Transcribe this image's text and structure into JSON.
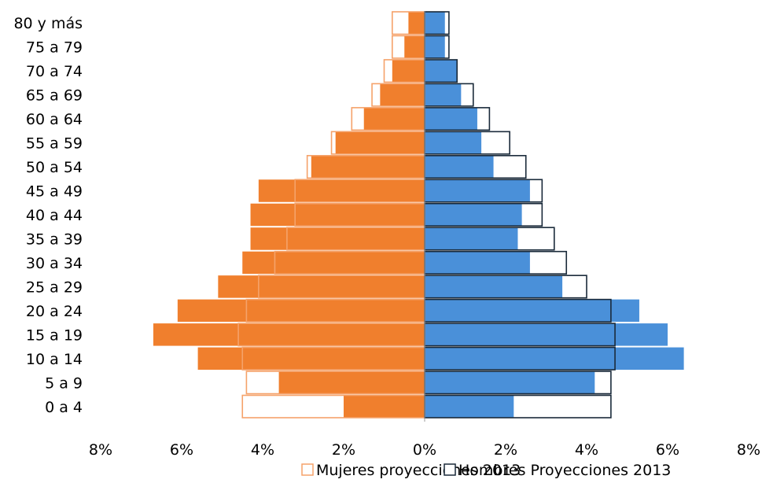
{
  "chart_data": {
    "type": "bar",
    "orientation": "horizontal",
    "subtype": "population-pyramid",
    "categories": [
      "0 a 4",
      "5 a 9",
      "10 a 14",
      "15 a 19",
      "20 a 24",
      "25 a 29",
      "30 a 34",
      "35 a 39",
      "40 a 44",
      "45 a 49",
      "50 a 54",
      "55 a 59",
      "60 a 64",
      "65 a 69",
      "70 a 74",
      "75 a 79",
      "80 y más"
    ],
    "series": [
      {
        "key": "mujeres_filled",
        "side": "left",
        "color": "#F07F2D",
        "values": [
          2.0,
          3.6,
          5.6,
          6.7,
          6.1,
          5.1,
          4.5,
          4.3,
          4.3,
          4.1,
          2.8,
          2.2,
          1.5,
          1.1,
          0.8,
          0.5,
          0.4
        ]
      },
      {
        "key": "hombres_filled",
        "side": "right",
        "color": "#4A90D9",
        "values": [
          2.2,
          4.2,
          6.4,
          6.0,
          5.3,
          3.4,
          2.6,
          2.3,
          2.4,
          2.6,
          1.7,
          1.4,
          1.3,
          0.9,
          0.8,
          0.5,
          0.5
        ]
      },
      {
        "key": "mujeres_2013",
        "name": "Mujeres proyecciones 2013",
        "side": "left",
        "style": "outline",
        "color": "#F5A26A",
        "values": [
          4.5,
          4.4,
          4.5,
          4.6,
          4.4,
          4.1,
          3.7,
          3.4,
          3.2,
          3.2,
          2.9,
          2.3,
          1.8,
          1.3,
          1.0,
          0.8,
          0.8
        ]
      },
      {
        "key": "hombres_2013",
        "name": "Hombres Proyecciones 2013",
        "side": "right",
        "style": "outline",
        "color": "#1A2A3A",
        "values": [
          4.6,
          4.6,
          4.7,
          4.7,
          4.6,
          4.0,
          3.5,
          3.2,
          2.9,
          2.9,
          2.5,
          2.1,
          1.6,
          1.2,
          0.8,
          0.6,
          0.6
        ]
      }
    ],
    "xlim": [
      -8,
      8
    ],
    "x_ticks": [
      "8%",
      "6%",
      "4%",
      "2%",
      "0%",
      "2%",
      "4%",
      "6%",
      "8%"
    ],
    "grid": false,
    "legend_position": "bottom"
  }
}
